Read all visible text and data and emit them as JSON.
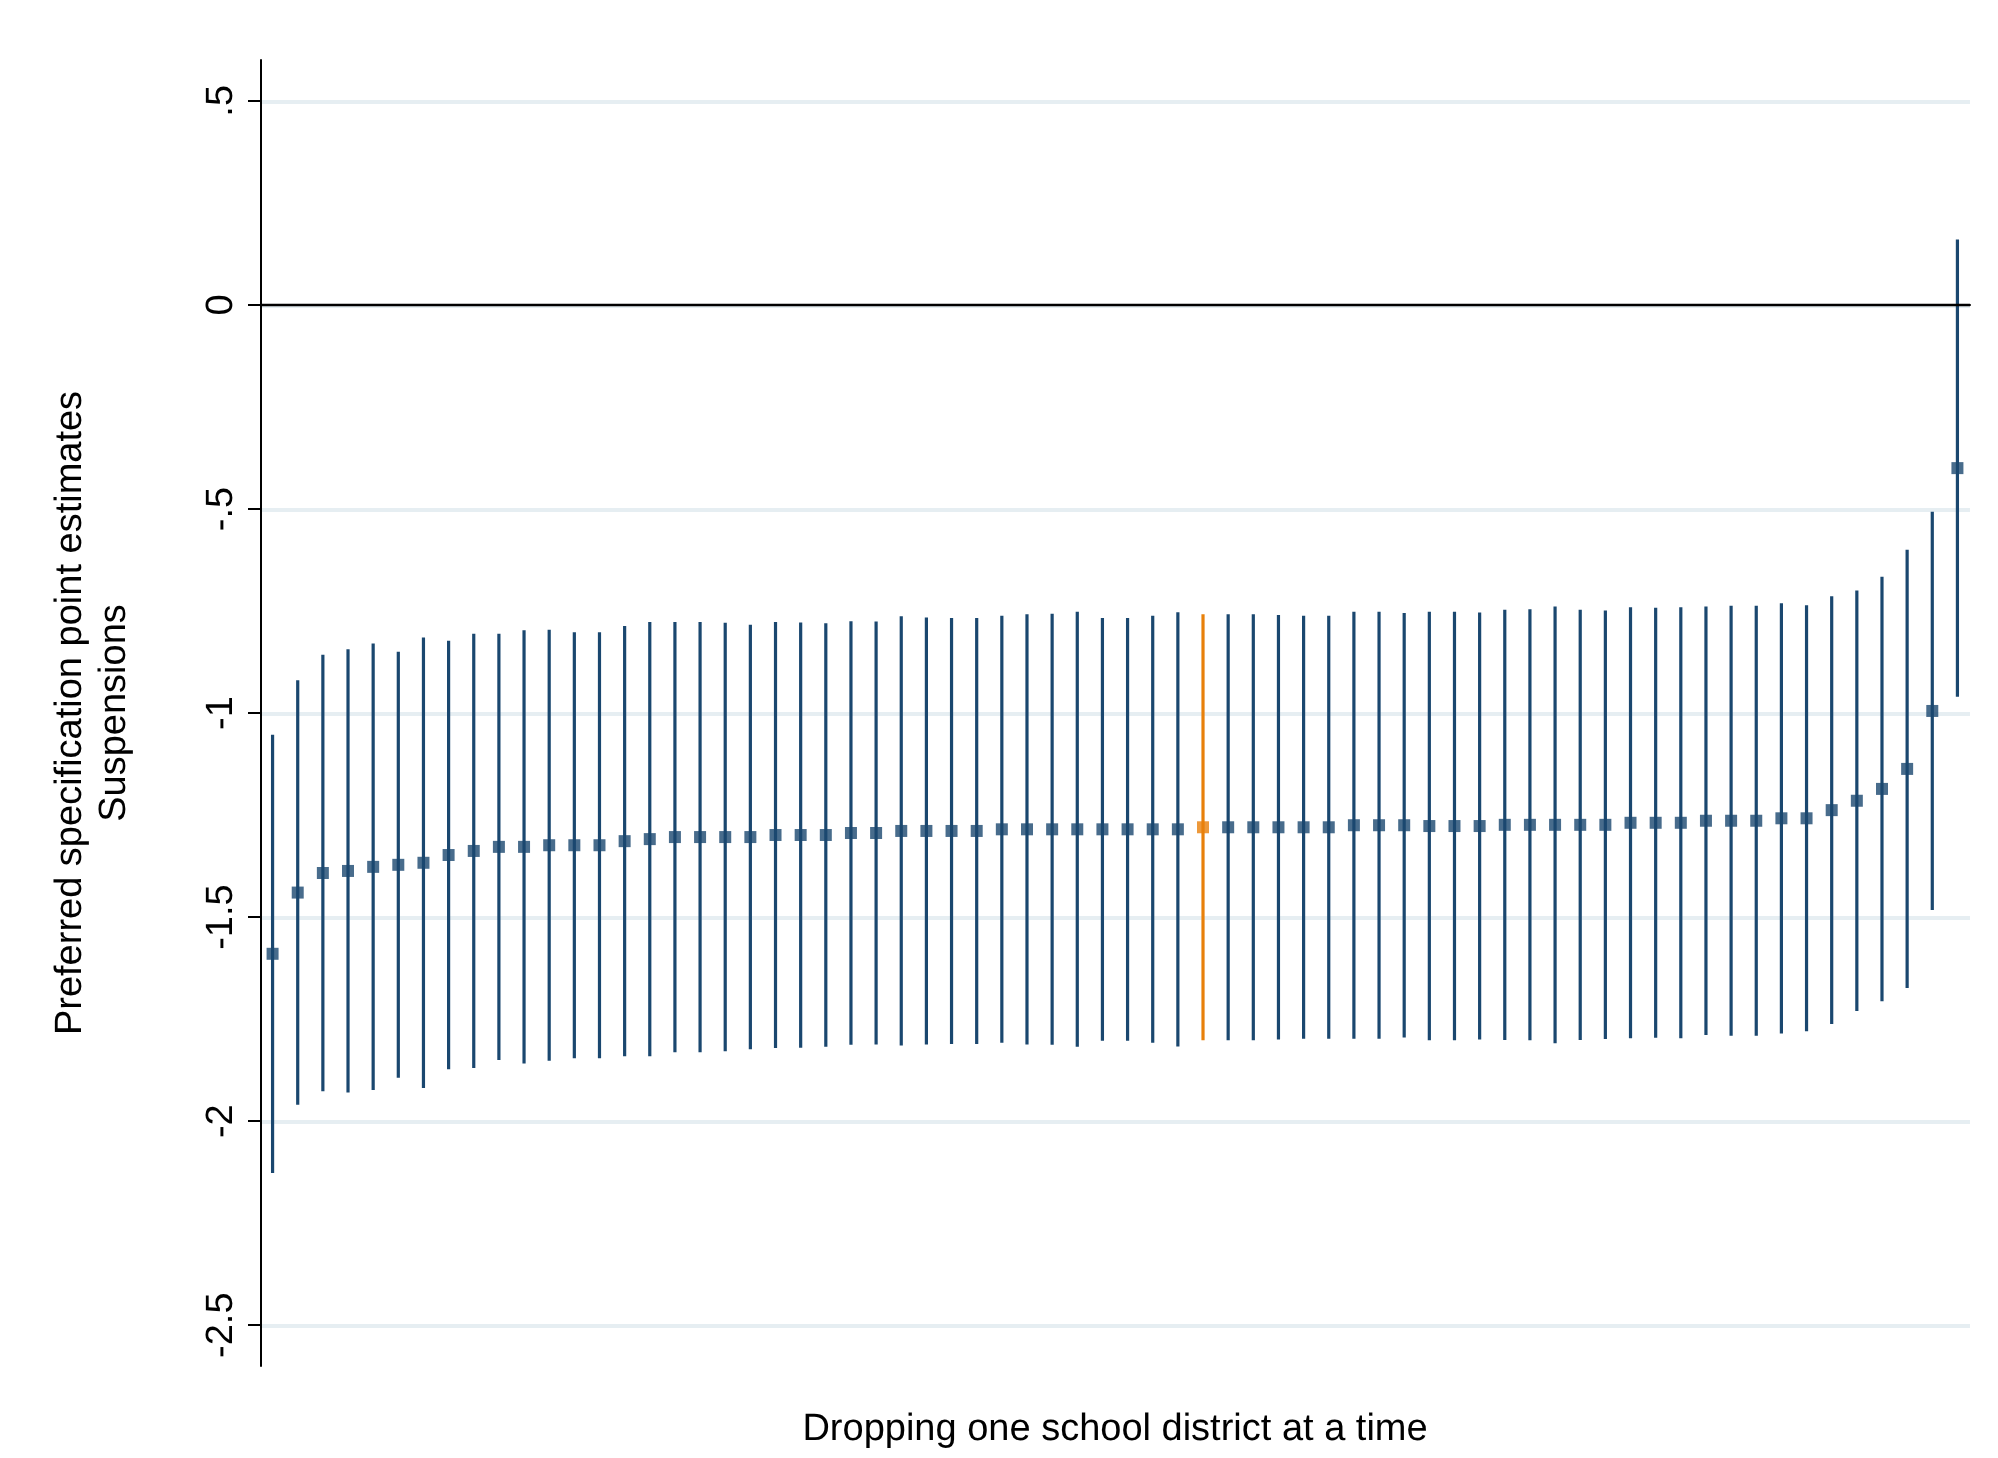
{
  "chart_data": {
    "type": "scatter",
    "ylabel": "Preferred specification point estimates\nSuspensions",
    "xlabel": "Dropping one school district at a time",
    "categories": [
      null,
      null,
      null,
      null,
      null,
      null,
      null,
      null,
      null,
      null,
      null,
      null,
      null,
      null,
      null,
      null,
      null,
      null,
      null,
      null,
      null,
      null,
      null,
      null,
      null,
      null,
      null,
      null,
      null,
      null,
      null,
      null,
      null,
      null,
      null,
      null,
      null,
      null,
      null,
      null,
      null,
      null,
      null,
      null,
      null,
      null,
      null,
      null,
      null,
      null,
      null,
      null,
      null,
      null,
      null,
      null,
      null,
      null,
      null,
      null,
      null,
      null,
      null,
      null,
      null,
      null,
      null,
      null
    ],
    "values": [
      -1.59,
      -1.44,
      -1.392,
      -1.387,
      -1.377,
      -1.372,
      -1.367,
      -1.348,
      -1.338,
      -1.328,
      -1.328,
      -1.324,
      -1.324,
      -1.324,
      -1.314,
      -1.309,
      -1.304,
      -1.304,
      -1.304,
      -1.304,
      -1.299,
      -1.299,
      -1.299,
      -1.294,
      -1.294,
      -1.289,
      -1.289,
      -1.289,
      -1.289,
      -1.285,
      -1.285,
      -1.285,
      -1.285,
      -1.285,
      -1.285,
      -1.285,
      -1.285,
      -1.28,
      -1.28,
      -1.28,
      -1.28,
      -1.28,
      -1.28,
      -1.275,
      -1.275,
      -1.275,
      -1.277,
      -1.277,
      -1.277,
      -1.274,
      -1.274,
      -1.274,
      -1.274,
      -1.274,
      -1.269,
      -1.269,
      -1.269,
      -1.264,
      -1.264,
      -1.264,
      -1.258,
      -1.258,
      -1.238,
      -1.215,
      -1.186,
      -1.137,
      -0.995,
      -0.4
    ],
    "errors": [
      0.537,
      0.52,
      0.535,
      0.543,
      0.547,
      0.522,
      0.552,
      0.525,
      0.532,
      0.522,
      0.531,
      0.528,
      0.522,
      0.522,
      0.527,
      0.532,
      0.527,
      0.527,
      0.525,
      0.52,
      0.522,
      0.521,
      0.519,
      0.519,
      0.518,
      0.526,
      0.523,
      0.522,
      0.522,
      0.523,
      0.527,
      0.528,
      0.533,
      0.518,
      0.518,
      0.523,
      0.532,
      0.522,
      0.522,
      0.522,
      0.52,
      0.518,
      0.518,
      0.523,
      0.523,
      0.52,
      0.525,
      0.525,
      0.523,
      0.527,
      0.528,
      0.535,
      0.527,
      0.525,
      0.528,
      0.527,
      0.528,
      0.525,
      0.527,
      0.527,
      0.527,
      0.522,
      0.524,
      0.515,
      0.52,
      0.537,
      0.488,
      0.56
    ],
    "colors": [
      "#1a476f",
      "#1a476f",
      "#1a476f",
      "#1a476f",
      "#1a476f",
      "#1a476f",
      "#1a476f",
      "#1a476f",
      "#1a476f",
      "#1a476f",
      "#1a476f",
      "#1a476f",
      "#1a476f",
      "#1a476f",
      "#1a476f",
      "#1a476f",
      "#1a476f",
      "#1a476f",
      "#1a476f",
      "#1a476f",
      "#1a476f",
      "#1a476f",
      "#1a476f",
      "#1a476f",
      "#1a476f",
      "#1a476f",
      "#1a476f",
      "#1a476f",
      "#1a476f",
      "#1a476f",
      "#1a476f",
      "#1a476f",
      "#1a476f",
      "#1a476f",
      "#1a476f",
      "#1a476f",
      "#1a476f",
      "#e8800a",
      "#1a476f",
      "#1a476f",
      "#1a476f",
      "#1a476f",
      "#1a476f",
      "#1a476f",
      "#1a476f",
      "#1a476f",
      "#1a476f",
      "#1a476f",
      "#1a476f",
      "#1a476f",
      "#1a476f",
      "#1a476f",
      "#1a476f",
      "#1a476f",
      "#1a476f",
      "#1a476f",
      "#1a476f",
      "#1a476f",
      "#1a476f",
      "#1a476f",
      "#1a476f",
      "#1a476f",
      "#1a476f",
      "#1a476f",
      "#1a476f",
      "#1a476f",
      "#1a476f",
      "#1a476f"
    ],
    "ylim": [
      -2.6,
      0.6
    ],
    "yticks": [
      {
        "value": 0.5,
        "label": ".5"
      },
      0,
      {
        "value": -0.5,
        "label": "-.5"
      },
      -1,
      -1.5,
      -2,
      -2.5
    ],
    "ref_lines": [
      {
        "axis": "y",
        "value": 0,
        "color": "#000000"
      }
    ],
    "grid": "y",
    "marker": "square"
  }
}
